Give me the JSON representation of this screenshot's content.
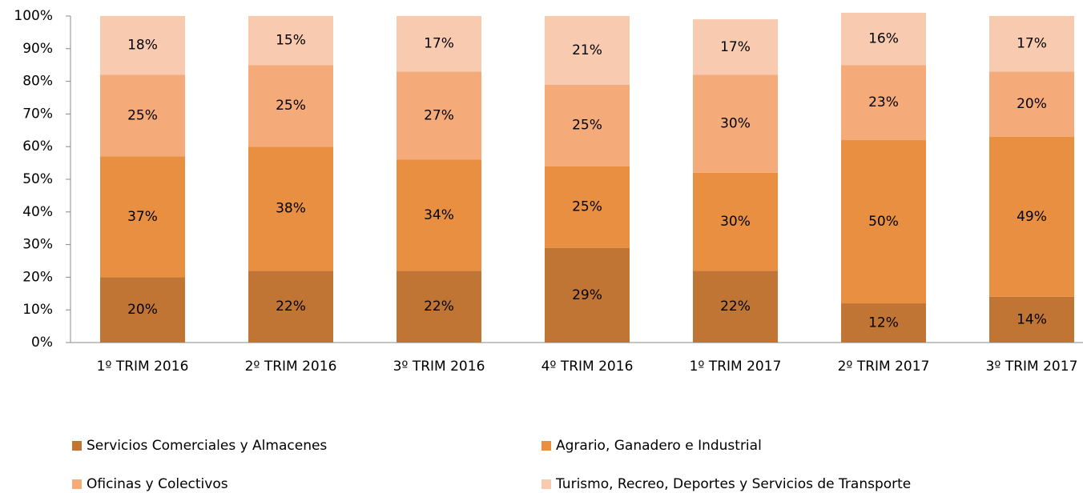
{
  "chart_data": {
    "type": "stacked_bar",
    "categories": [
      "1º TRIM 2016",
      "2º TRIM 2016",
      "3º TRIM 2016",
      "4º TRIM 2016",
      "1º TRIM 2017",
      "2º TRIM 2017",
      "3º TRIM 2017"
    ],
    "series": [
      {
        "name": "Servicios Comerciales y Almacenes",
        "color": "#c07535",
        "values": [
          20,
          22,
          22,
          29,
          22,
          12,
          14
        ],
        "value_labels": [
          "20%",
          "22%",
          "22%",
          "29%",
          "22%",
          "12%",
          "14%"
        ]
      },
      {
        "name": "Agrario, Ganadero e Industrial",
        "color": "#e88f41",
        "values": [
          37,
          38,
          34,
          25,
          30,
          50,
          49
        ],
        "value_labels": [
          "37%",
          "38%",
          "34%",
          "25%",
          "30%",
          "50%",
          "49%"
        ]
      },
      {
        "name": "Oficinas y Colectivos",
        "color": "#f5aa79",
        "values": [
          25,
          25,
          27,
          25,
          30,
          23,
          20
        ],
        "value_labels": [
          "25%",
          "25%",
          "27%",
          "25%",
          "30%",
          "23%",
          "20%"
        ]
      },
      {
        "name": "Turismo, Recreo, Deportes y Servicios de Transporte",
        "color": "#f8cbb1",
        "values": [
          18,
          15,
          17,
          21,
          17,
          16,
          17
        ],
        "value_labels": [
          "18%",
          "15%",
          "17%",
          "21%",
          "17%",
          "16%",
          "17%"
        ]
      }
    ],
    "ylim": [
      0,
      100
    ],
    "yticks": [
      {
        "value": 0,
        "label": "0%"
      },
      {
        "value": 10,
        "label": "10%"
      },
      {
        "value": 20,
        "label": "20%"
      },
      {
        "value": 30,
        "label": "30%"
      },
      {
        "value": 40,
        "label": "40%"
      },
      {
        "value": 50,
        "label": "50%"
      },
      {
        "value": 60,
        "label": "60%"
      },
      {
        "value": 70,
        "label": "70%"
      },
      {
        "value": 80,
        "label": "80%"
      },
      {
        "value": 90,
        "label": "90%"
      },
      {
        "value": 100,
        "label": "100%"
      }
    ],
    "legend": "bottom"
  }
}
